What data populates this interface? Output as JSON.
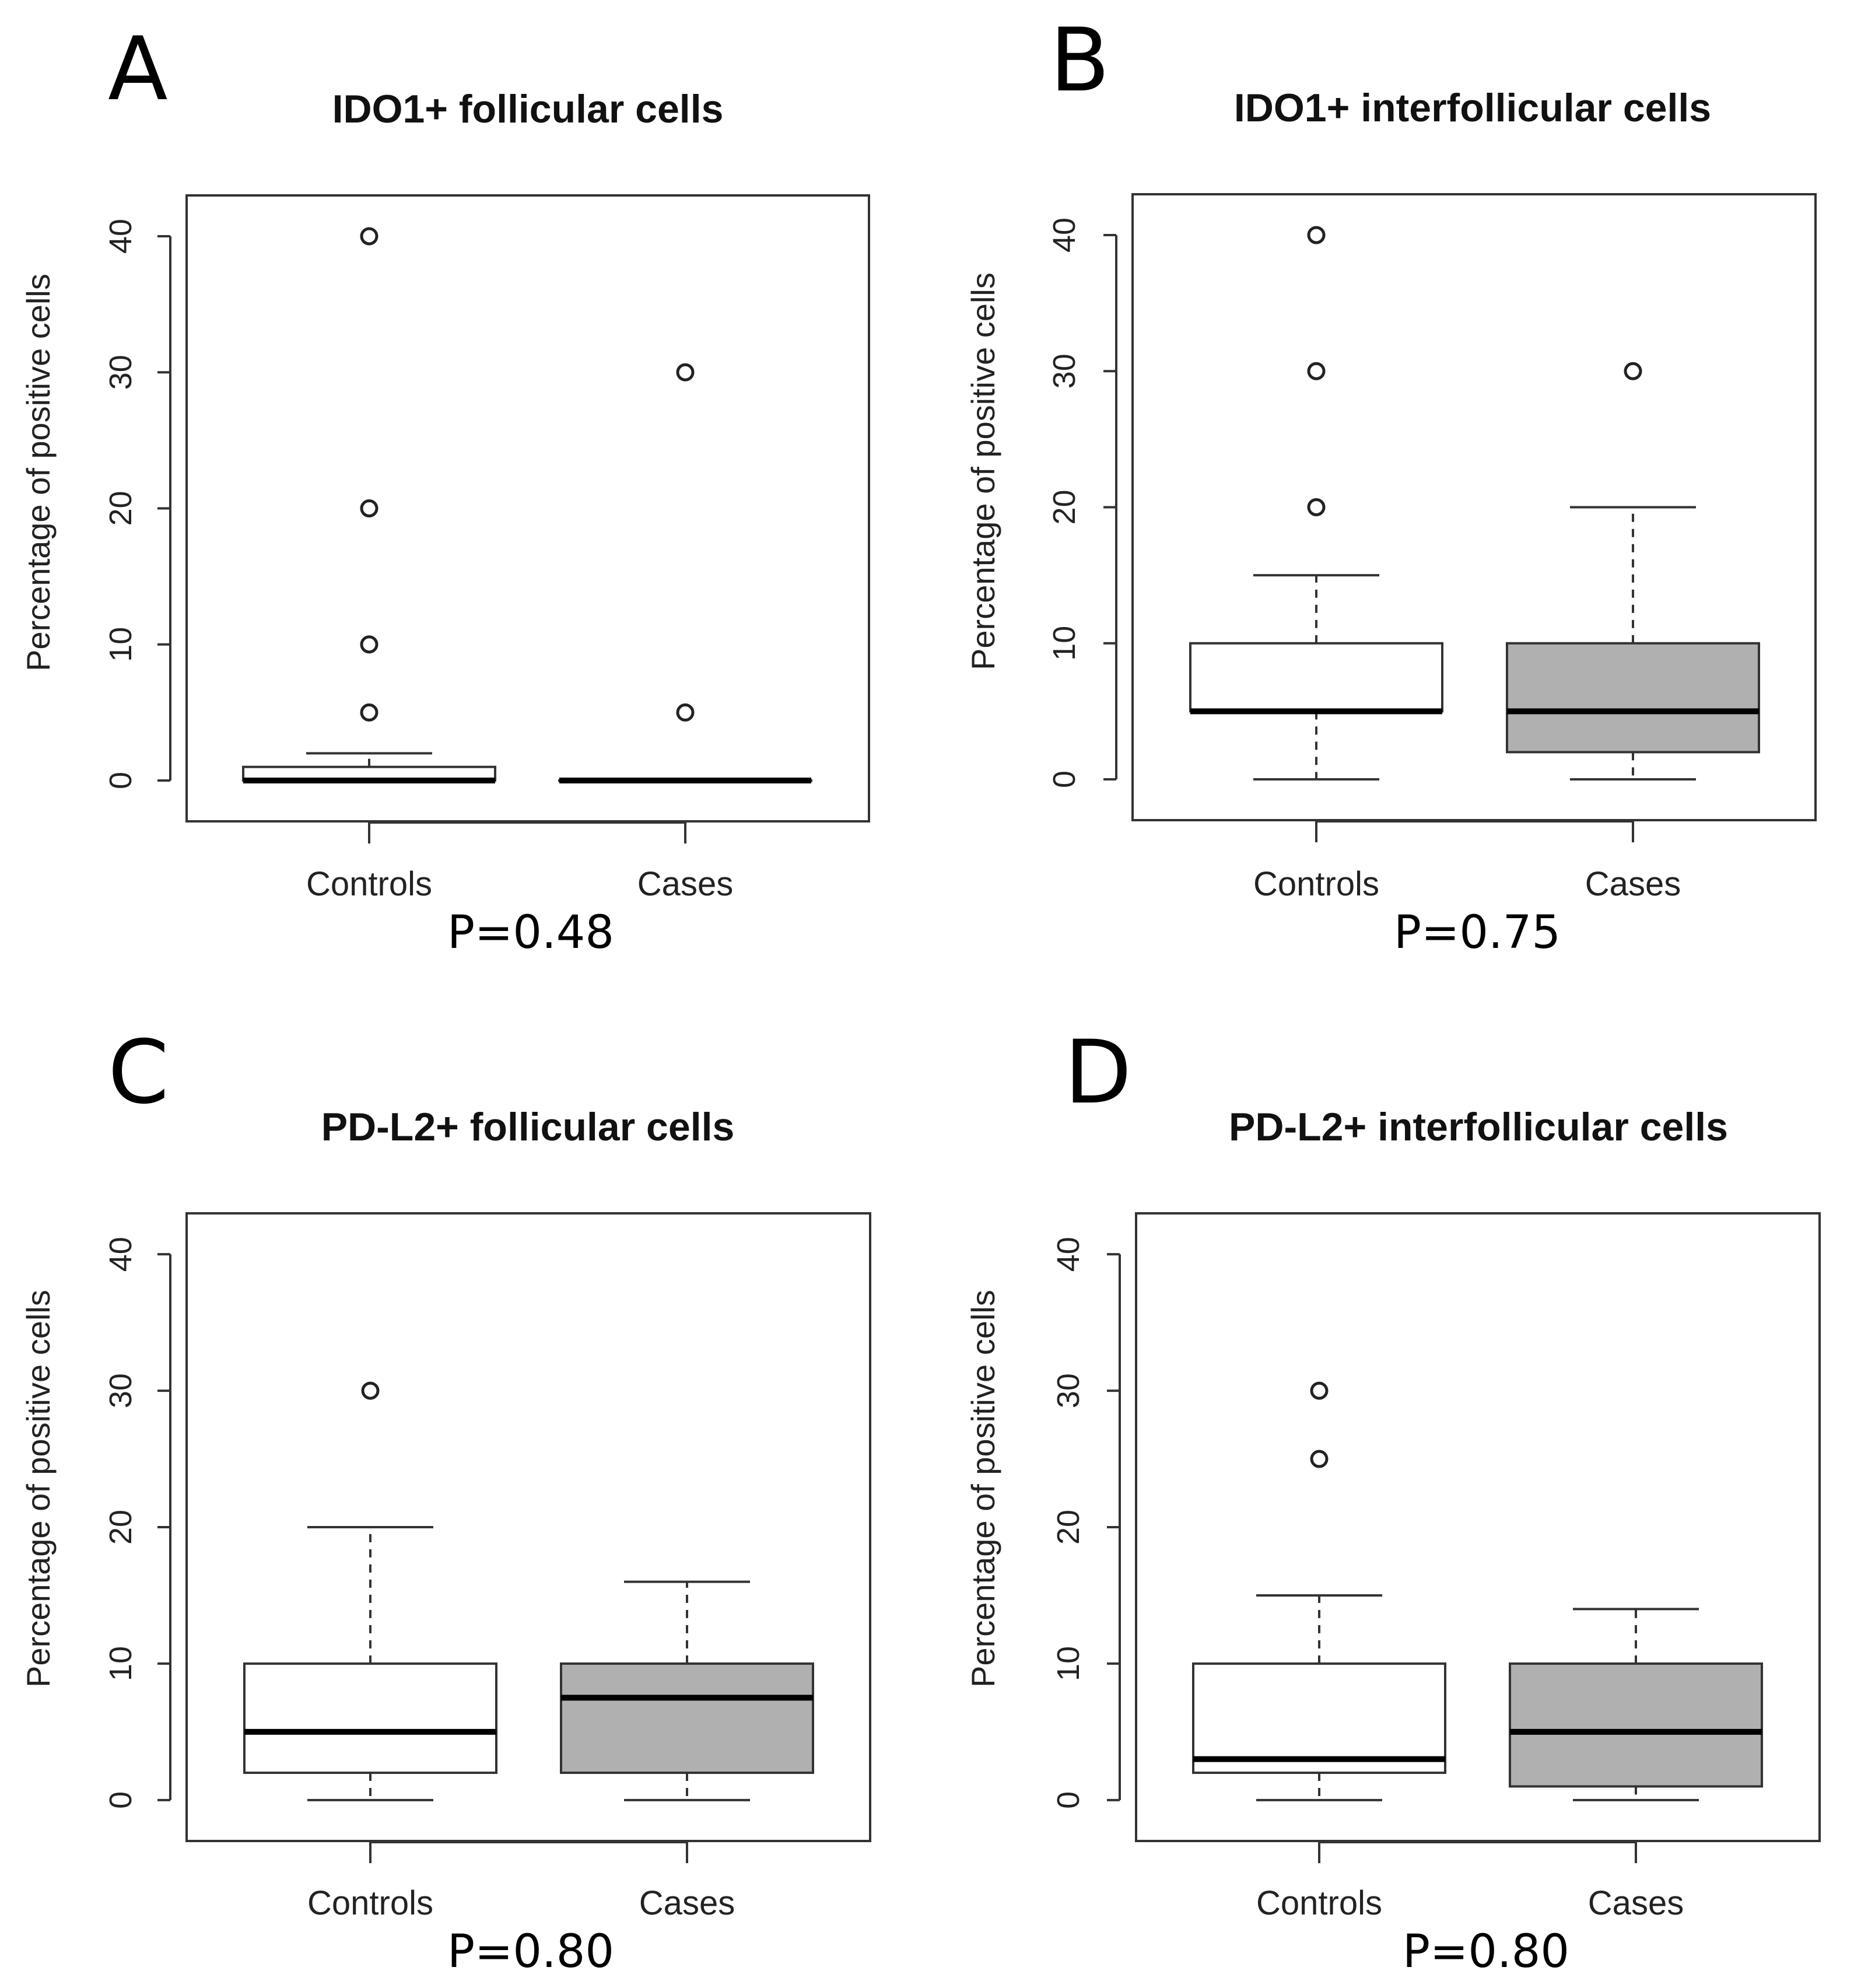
{
  "figure": {
    "colors": {
      "controls_fill": "#ffffff",
      "cases_fill": "#b0b0b0",
      "stroke": "#333333",
      "background": "#ffffff"
    }
  },
  "chart_data": [
    {
      "type": "boxplot",
      "panel": "A",
      "title": "IDO1+ follicular cells",
      "xlabel": "",
      "ylabel": "Percentage of positive cells",
      "ylim": [
        -3,
        43
      ],
      "yticks": [
        "0",
        "10",
        "20",
        "30",
        "40"
      ],
      "ytick_values": [
        0,
        10,
        20,
        30,
        40
      ],
      "categories": [
        "Controls",
        "Cases"
      ],
      "pvalue": "P=0.48",
      "series": [
        {
          "name": "Controls",
          "fill": "#ffffff",
          "lower_whisker": 0,
          "q1": 0,
          "median": 0,
          "q3": 1,
          "upper_whisker": 2,
          "outliers": [
            5,
            10,
            20,
            40
          ]
        },
        {
          "name": "Cases",
          "fill": "#b0b0b0",
          "lower_whisker": 0,
          "q1": 0,
          "median": 0,
          "q3": 0,
          "upper_whisker": 0,
          "outliers": [
            5,
            30
          ]
        }
      ]
    },
    {
      "type": "boxplot",
      "panel": "B",
      "title": "IDO1+ interfollicular cells",
      "xlabel": "",
      "ylabel": "Percentage of positive cells",
      "ylim": [
        -3,
        43
      ],
      "yticks": [
        "0",
        "10",
        "20",
        "30",
        "40"
      ],
      "ytick_values": [
        0,
        10,
        20,
        30,
        40
      ],
      "categories": [
        "Controls",
        "Cases"
      ],
      "pvalue": "P=0.75",
      "series": [
        {
          "name": "Controls",
          "fill": "#ffffff",
          "lower_whisker": 0,
          "q1": 5,
          "median": 5,
          "q3": 10,
          "upper_whisker": 15,
          "outliers": [
            20,
            30,
            40
          ]
        },
        {
          "name": "Cases",
          "fill": "#b0b0b0",
          "lower_whisker": 0,
          "q1": 2,
          "median": 5,
          "q3": 10,
          "upper_whisker": 20,
          "outliers": [
            30
          ]
        }
      ]
    },
    {
      "type": "boxplot",
      "panel": "C",
      "title": "PD-L2+ follicular cells",
      "xlabel": "",
      "ylabel": "Percentage of positive cells",
      "ylim": [
        -3,
        43
      ],
      "yticks": [
        "0",
        "10",
        "20",
        "30",
        "40"
      ],
      "ytick_values": [
        0,
        10,
        20,
        30,
        40
      ],
      "categories": [
        "Controls",
        "Cases"
      ],
      "pvalue": "P=0.80",
      "series": [
        {
          "name": "Controls",
          "fill": "#ffffff",
          "lower_whisker": 0,
          "q1": 2,
          "median": 5,
          "q3": 10,
          "upper_whisker": 20,
          "outliers": [
            30
          ]
        },
        {
          "name": "Cases",
          "fill": "#b0b0b0",
          "lower_whisker": 0,
          "q1": 2,
          "median": 7.5,
          "q3": 10,
          "upper_whisker": 16,
          "outliers": []
        }
      ]
    },
    {
      "type": "boxplot",
      "panel": "D",
      "title": "PD-L2+ interfollicular cells",
      "xlabel": "",
      "ylabel": "Percentage of positive cells",
      "ylim": [
        -3,
        43
      ],
      "yticks": [
        "0",
        "10",
        "20",
        "30",
        "40"
      ],
      "ytick_values": [
        0,
        10,
        20,
        30,
        40
      ],
      "categories": [
        "Controls",
        "Cases"
      ],
      "pvalue": "P=0.80",
      "series": [
        {
          "name": "Controls",
          "fill": "#ffffff",
          "lower_whisker": 0,
          "q1": 2,
          "median": 3,
          "q3": 10,
          "upper_whisker": 15,
          "outliers": [
            25,
            30
          ]
        },
        {
          "name": "Cases",
          "fill": "#b0b0b0",
          "lower_whisker": 0,
          "q1": 1,
          "median": 5,
          "q3": 10,
          "upper_whisker": 14,
          "outliers": []
        }
      ]
    }
  ]
}
